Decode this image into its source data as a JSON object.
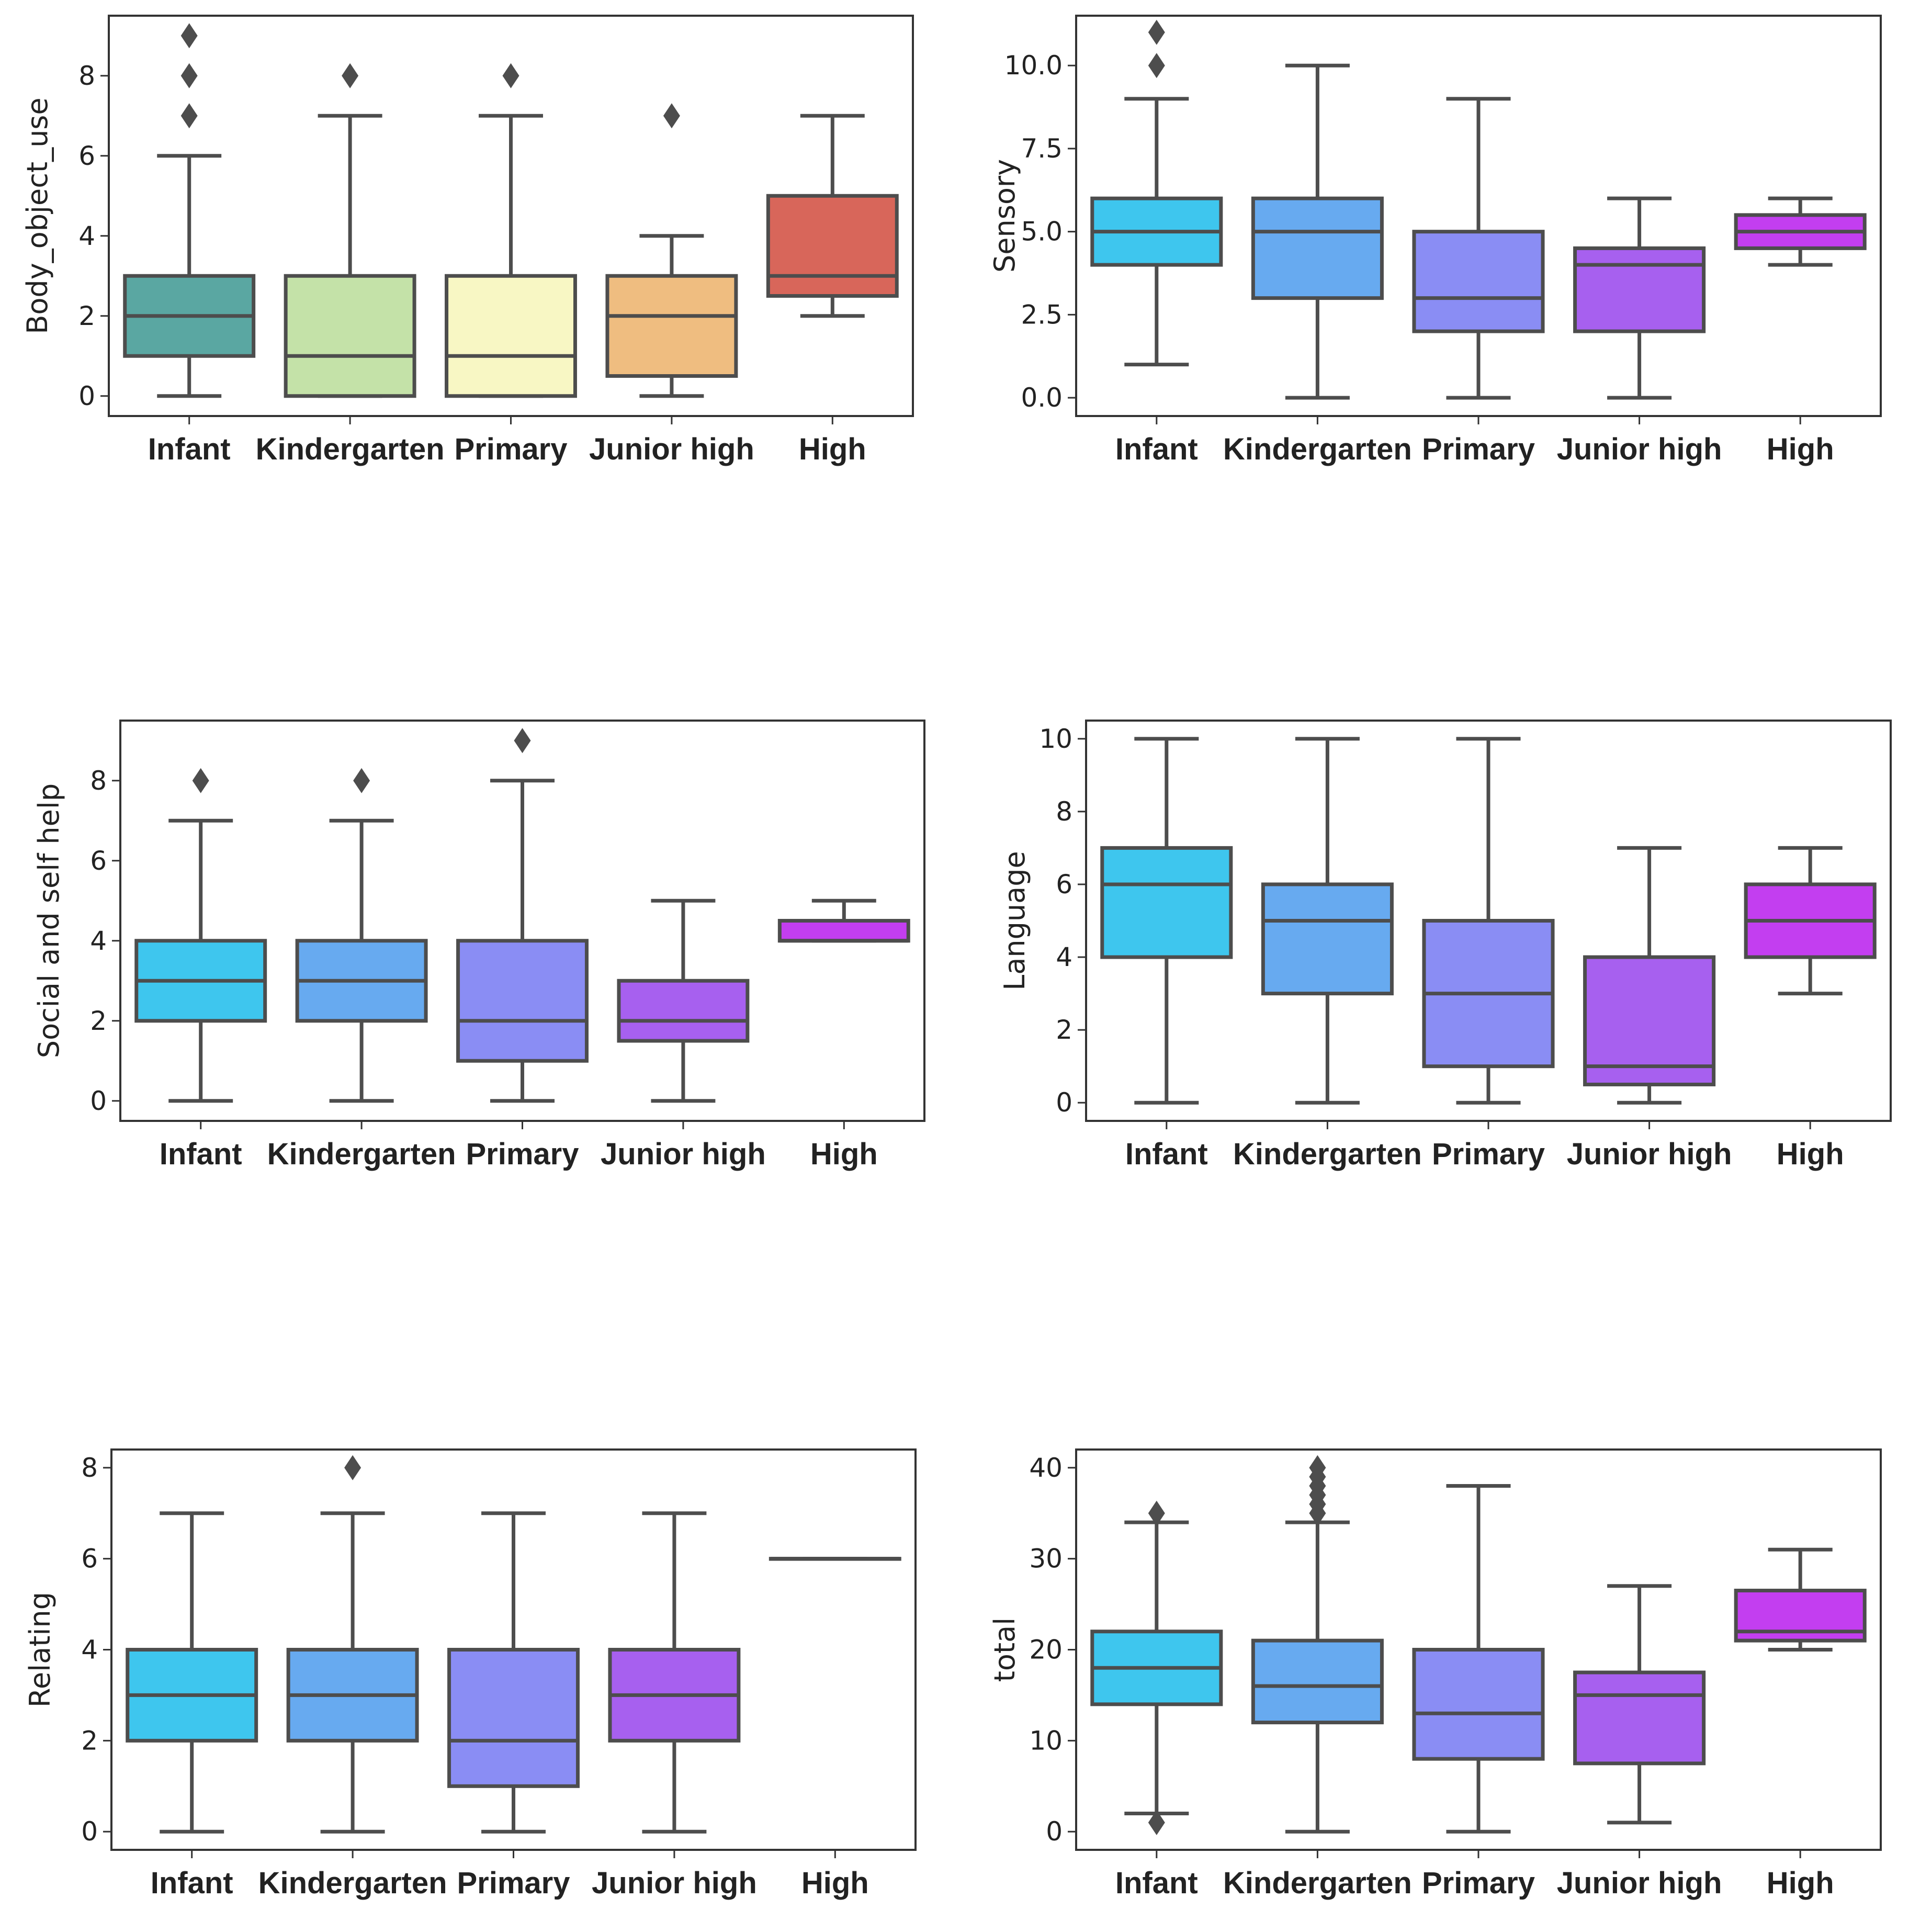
{
  "chart_data": [
    {
      "type": "box",
      "ylabel": "Body_object_use",
      "ylim": [
        -0.5,
        9.5
      ],
      "yticks": [
        0,
        2,
        4,
        6,
        8
      ],
      "categories": [
        "Infant",
        "Kindergarten",
        "Primary",
        "Junior high",
        "High"
      ],
      "colors": [
        "#5aa7a2",
        "#c4e2a8",
        "#f8f7c4",
        "#efbd80",
        "#d8665a"
      ],
      "boxes": [
        {
          "whisker_low": 0,
          "q1": 1,
          "median": 2,
          "q3": 3,
          "whisker_high": 6,
          "outliers": [
            7,
            8,
            9
          ]
        },
        {
          "whisker_low": 0,
          "q1": 0,
          "median": 1,
          "q3": 3,
          "whisker_high": 7,
          "outliers": [
            8
          ]
        },
        {
          "whisker_low": 0,
          "q1": 0,
          "median": 1,
          "q3": 3,
          "whisker_high": 7,
          "outliers": [
            8
          ]
        },
        {
          "whisker_low": 0,
          "q1": 0.5,
          "median": 2,
          "q3": 3,
          "whisker_high": 4,
          "outliers": [
            7
          ]
        },
        {
          "whisker_low": 2,
          "q1": 2.5,
          "median": 3,
          "q3": 5,
          "whisker_high": 7,
          "outliers": []
        }
      ]
    },
    {
      "type": "box",
      "ylabel": "Sensory",
      "ylim": [
        -0.55,
        11.5
      ],
      "yticks": [
        0.0,
        2.5,
        5.0,
        7.5,
        10.0
      ],
      "tick_labels": [
        "0.0",
        "2.5",
        "5.0",
        "7.5",
        "10.0"
      ],
      "categories": [
        "Infant",
        "Kindergarten",
        "Primary",
        "Junior high",
        "High"
      ],
      "colors": [
        "#3ec6ee",
        "#67aaf0",
        "#8a8df4",
        "#a760ef",
        "#c33ef0"
      ],
      "boxes": [
        {
          "whisker_low": 1,
          "q1": 4,
          "median": 5,
          "q3": 6,
          "whisker_high": 9,
          "outliers": [
            10,
            11
          ]
        },
        {
          "whisker_low": 0,
          "q1": 3,
          "median": 5,
          "q3": 6,
          "whisker_high": 10,
          "outliers": []
        },
        {
          "whisker_low": 0,
          "q1": 2,
          "median": 3,
          "q3": 5,
          "whisker_high": 9,
          "outliers": []
        },
        {
          "whisker_low": 0,
          "q1": 2,
          "median": 4,
          "q3": 4.5,
          "whisker_high": 6,
          "outliers": []
        },
        {
          "whisker_low": 4,
          "q1": 4.5,
          "median": 5,
          "q3": 5.5,
          "whisker_high": 6,
          "outliers": []
        }
      ]
    },
    {
      "type": "box",
      "ylabel": "Social and self help",
      "ylim": [
        -0.5,
        9.5
      ],
      "yticks": [
        0,
        2,
        4,
        6,
        8
      ],
      "categories": [
        "Infant",
        "Kindergarten",
        "Primary",
        "Junior high",
        "High"
      ],
      "colors": [
        "#3ec6ee",
        "#67aaf0",
        "#8a8df4",
        "#a760ef",
        "#c33ef0"
      ],
      "boxes": [
        {
          "whisker_low": 0,
          "q1": 2,
          "median": 3,
          "q3": 4,
          "whisker_high": 7,
          "outliers": [
            8
          ]
        },
        {
          "whisker_low": 0,
          "q1": 2,
          "median": 3,
          "q3": 4,
          "whisker_high": 7,
          "outliers": [
            8
          ]
        },
        {
          "whisker_low": 0,
          "q1": 1,
          "median": 2,
          "q3": 4,
          "whisker_high": 8,
          "outliers": [
            9
          ]
        },
        {
          "whisker_low": 0,
          "q1": 1.5,
          "median": 2,
          "q3": 3,
          "whisker_high": 5,
          "outliers": []
        },
        {
          "whisker_low": 4,
          "q1": 4,
          "median": 4,
          "q3": 4.5,
          "whisker_high": 5,
          "outliers": []
        }
      ]
    },
    {
      "type": "box",
      "ylabel": "Language",
      "ylim": [
        -0.5,
        10.5
      ],
      "yticks": [
        0,
        2,
        4,
        6,
        8,
        10
      ],
      "categories": [
        "Infant",
        "Kindergarten",
        "Primary",
        "Junior high",
        "High"
      ],
      "colors": [
        "#3ec6ee",
        "#67aaf0",
        "#8a8df4",
        "#a760ef",
        "#c33ef0"
      ],
      "boxes": [
        {
          "whisker_low": 0,
          "q1": 4,
          "median": 6,
          "q3": 7,
          "whisker_high": 10,
          "outliers": []
        },
        {
          "whisker_low": 0,
          "q1": 3,
          "median": 5,
          "q3": 6,
          "whisker_high": 10,
          "outliers": []
        },
        {
          "whisker_low": 0,
          "q1": 1,
          "median": 3,
          "q3": 5,
          "whisker_high": 10,
          "outliers": []
        },
        {
          "whisker_low": 0,
          "q1": 0.5,
          "median": 1,
          "q3": 4,
          "whisker_high": 7,
          "outliers": []
        },
        {
          "whisker_low": 3,
          "q1": 4,
          "median": 5,
          "q3": 6,
          "whisker_high": 7,
          "outliers": []
        }
      ]
    },
    {
      "type": "box",
      "ylabel": "Relating",
      "ylim": [
        -0.4,
        8.4
      ],
      "yticks": [
        0,
        2,
        4,
        6,
        8
      ],
      "categories": [
        "Infant",
        "Kindergarten",
        "Primary",
        "Junior high",
        "High"
      ],
      "colors": [
        "#3ec6ee",
        "#67aaf0",
        "#8a8df4",
        "#a760ef",
        "#c33ef0"
      ],
      "boxes": [
        {
          "whisker_low": 0,
          "q1": 2,
          "median": 3,
          "q3": 4,
          "whisker_high": 7,
          "outliers": []
        },
        {
          "whisker_low": 0,
          "q1": 2,
          "median": 3,
          "q3": 4,
          "whisker_high": 7,
          "outliers": [
            8
          ]
        },
        {
          "whisker_low": 0,
          "q1": 1,
          "median": 2,
          "q3": 4,
          "whisker_high": 7,
          "outliers": []
        },
        {
          "whisker_low": 0,
          "q1": 2,
          "median": 3,
          "q3": 4,
          "whisker_high": 7,
          "outliers": []
        },
        {
          "whisker_low": 6,
          "q1": 6,
          "median": 6,
          "q3": 6,
          "whisker_high": 6,
          "outliers": []
        }
      ]
    },
    {
      "type": "box",
      "ylabel": "total",
      "ylim": [
        -2,
        42
      ],
      "yticks": [
        0,
        10,
        20,
        30,
        40
      ],
      "categories": [
        "Infant",
        "Kindergarten",
        "Primary",
        "Junior high",
        "High"
      ],
      "colors": [
        "#3ec6ee",
        "#67aaf0",
        "#8a8df4",
        "#a760ef",
        "#c33ef0"
      ],
      "boxes": [
        {
          "whisker_low": 2,
          "q1": 14,
          "median": 18,
          "q3": 22,
          "whisker_high": 34,
          "outliers": [
            1,
            35
          ]
        },
        {
          "whisker_low": 0,
          "q1": 12,
          "median": 16,
          "q3": 21,
          "whisker_high": 34,
          "outliers": [
            35,
            36,
            37,
            38,
            39,
            40
          ]
        },
        {
          "whisker_low": 0,
          "q1": 8,
          "median": 13,
          "q3": 20,
          "whisker_high": 38,
          "outliers": []
        },
        {
          "whisker_low": 1,
          "q1": 7.5,
          "median": 15,
          "q3": 17.5,
          "whisker_high": 27,
          "outliers": []
        },
        {
          "whisker_low": 20,
          "q1": 21,
          "median": 22,
          "q3": 26.5,
          "whisker_high": 31,
          "outliers": []
        }
      ]
    }
  ]
}
